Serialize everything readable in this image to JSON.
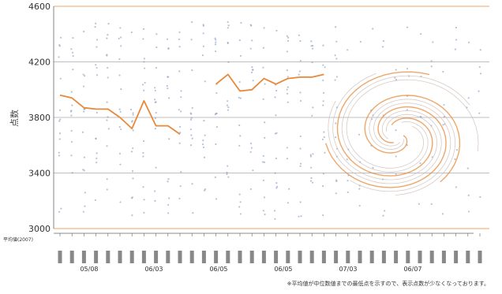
{
  "chart_data": {
    "type": "line",
    "title": "",
    "ylabel": "点数",
    "ylim": [
      3000,
      4600
    ],
    "yticks": [
      3000,
      3400,
      3800,
      4200,
      4600
    ],
    "grid": true,
    "series": [
      {
        "color": "#e8893a",
        "x_index": [
          0,
          1,
          2,
          3,
          4,
          5,
          6,
          7,
          8,
          9,
          10,
          11,
          13,
          14,
          15,
          16,
          17,
          18,
          19,
          20,
          21,
          22
        ],
        "values": [
          3960,
          3940,
          3870,
          3860,
          3860,
          3800,
          3720,
          3920,
          3740,
          3740,
          3680,
          null,
          4040,
          4110,
          3990,
          4000,
          4080,
          4040,
          4080,
          4090,
          4090,
          4110
        ]
      }
    ],
    "note": "※平均値が中位数値までの最低点を示すので、表示点数が少なくなっております。"
  },
  "axis": {
    "first_row_label": "平均値(2007)",
    "month_groups": [
      "05/08",
      "06/03",
      "06/05",
      "06/05",
      "07/03",
      "06/07"
    ]
  },
  "colors": {
    "line": "#e8893a",
    "grid": "#aaaaaa",
    "dots": "#7a8fb8",
    "swirl": "#e8893a"
  }
}
